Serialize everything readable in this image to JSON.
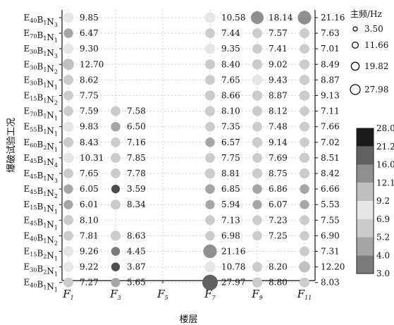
{
  "chart_data": {
    "type": "scatter",
    "xlabel": "楼层",
    "ylabel": "爆破试验工况",
    "x_ticks": [
      {
        "base": "F",
        "sub": "1"
      },
      {
        "base": "F",
        "sub": "3"
      },
      {
        "base": "F",
        "sub": "5"
      },
      {
        "base": "F",
        "sub": "7"
      },
      {
        "base": "F",
        "sub": "9"
      },
      {
        "base": "F",
        "sub": "11"
      }
    ],
    "cases": [
      {
        "parts": [
          [
            "E",
            "40"
          ],
          [
            "B",
            "1"
          ],
          [
            "N",
            "3"
          ]
        ],
        "right": "21.16"
      },
      {
        "parts": [
          [
            "E",
            "70"
          ],
          [
            "B",
            "1"
          ],
          [
            "N",
            "1"
          ]
        ],
        "right": "7.63"
      },
      {
        "parts": [
          [
            "E",
            "30"
          ],
          [
            "B",
            "1"
          ],
          [
            "N",
            "3"
          ]
        ],
        "right": "7.01"
      },
      {
        "parts": [
          [
            "E",
            "30"
          ],
          [
            "B",
            "1"
          ],
          [
            "N",
            "2"
          ]
        ],
        "right": "8.49"
      },
      {
        "parts": [
          [
            "E",
            "30"
          ],
          [
            "B",
            "1"
          ],
          [
            "N",
            "1"
          ]
        ],
        "right": "8.87"
      },
      {
        "parts": [
          [
            "E",
            "15"
          ],
          [
            "B",
            "1"
          ],
          [
            "N",
            "2"
          ]
        ],
        "right": "9.13"
      },
      {
        "parts": [
          [
            "E",
            "70"
          ],
          [
            "B",
            "1"
          ],
          [
            "N",
            "1"
          ]
        ],
        "right": "7.11"
      },
      {
        "parts": [
          [
            "E",
            "55"
          ],
          [
            "B",
            "1"
          ],
          [
            "N",
            "1"
          ]
        ],
        "right": "7.66"
      },
      {
        "parts": [
          [
            "E",
            "60"
          ],
          [
            "B",
            "2"
          ],
          [
            "N",
            "1"
          ]
        ],
        "right": "7.02"
      },
      {
        "parts": [
          [
            "E",
            "45"
          ],
          [
            "B",
            "1"
          ],
          [
            "N",
            "4"
          ]
        ],
        "right": "8.51"
      },
      {
        "parts": [
          [
            "E",
            "45"
          ],
          [
            "B",
            "1"
          ],
          [
            "N",
            "3"
          ]
        ],
        "right": "8.42"
      },
      {
        "parts": [
          [
            "E",
            "45"
          ],
          [
            "B",
            "1"
          ],
          [
            "N",
            "2"
          ]
        ],
        "right": "6.66"
      },
      {
        "parts": [
          [
            "E",
            "15"
          ],
          [
            "B",
            "1"
          ],
          [
            "N",
            "1"
          ]
        ],
        "right": "5.53"
      },
      {
        "parts": [
          [
            "E",
            "45"
          ],
          [
            "B",
            "1"
          ],
          [
            "N",
            "1"
          ]
        ],
        "right": "7.55"
      },
      {
        "parts": [
          [
            "E",
            "40"
          ],
          [
            "B",
            "1"
          ],
          [
            "N",
            "2"
          ]
        ],
        "right": "6.90"
      },
      {
        "parts": [
          [
            "E",
            "15"
          ],
          [
            "B",
            "2"
          ],
          [
            "N",
            "1"
          ]
        ],
        "right": "7.31"
      },
      {
        "parts": [
          [
            "E",
            "30"
          ],
          [
            "B",
            "2"
          ],
          [
            "N",
            "1"
          ]
        ],
        "right": "12.20"
      },
      {
        "parts": [
          [
            "E",
            "40"
          ],
          [
            "B",
            "1"
          ],
          [
            "N",
            "1"
          ]
        ],
        "right": "8.03"
      }
    ],
    "points": [
      {
        "row": 0,
        "floor": 1,
        "value": 9.85,
        "label": "9.85"
      },
      {
        "row": 0,
        "floor": 7,
        "value": 10.58,
        "label": "10.58"
      },
      {
        "row": 0,
        "floor": 9,
        "value": 18.14,
        "label": "18.14"
      },
      {
        "row": 0,
        "floor": 11,
        "value": 21.16,
        "label": ""
      },
      {
        "row": 1,
        "floor": 1,
        "value": 6.47,
        "label": "6.47"
      },
      {
        "row": 1,
        "floor": 7,
        "value": 7.44,
        "label": "7.44"
      },
      {
        "row": 1,
        "floor": 9,
        "value": 7.57,
        "label": "7.57"
      },
      {
        "row": 1,
        "floor": 11,
        "value": 7.63,
        "label": ""
      },
      {
        "row": 2,
        "floor": 1,
        "value": 9.3,
        "label": "9.30"
      },
      {
        "row": 2,
        "floor": 7,
        "value": 9.35,
        "label": "9.35"
      },
      {
        "row": 2,
        "floor": 9,
        "value": 7.41,
        "label": "7.41"
      },
      {
        "row": 2,
        "floor": 11,
        "value": 7.01,
        "label": ""
      },
      {
        "row": 3,
        "floor": 1,
        "value": 12.7,
        "label": "12.70"
      },
      {
        "row": 3,
        "floor": 7,
        "value": 8.4,
        "label": "8.40"
      },
      {
        "row": 3,
        "floor": 9,
        "value": 9.02,
        "label": "9.02"
      },
      {
        "row": 3,
        "floor": 11,
        "value": 8.49,
        "label": ""
      },
      {
        "row": 4,
        "floor": 1,
        "value": 8.62,
        "label": "8.62"
      },
      {
        "row": 4,
        "floor": 7,
        "value": 7.65,
        "label": "7.65"
      },
      {
        "row": 4,
        "floor": 9,
        "value": 9.43,
        "label": "9.43"
      },
      {
        "row": 4,
        "floor": 11,
        "value": 8.87,
        "label": ""
      },
      {
        "row": 5,
        "floor": 1,
        "value": 7.75,
        "label": "7.75"
      },
      {
        "row": 5,
        "floor": 7,
        "value": 8.66,
        "label": "8.66"
      },
      {
        "row": 5,
        "floor": 9,
        "value": 8.87,
        "label": "8.87"
      },
      {
        "row": 5,
        "floor": 11,
        "value": 9.13,
        "label": ""
      },
      {
        "row": 6,
        "floor": 1,
        "value": 7.59,
        "label": "7.59"
      },
      {
        "row": 6,
        "floor": 3,
        "value": 7.58,
        "label": "7.58"
      },
      {
        "row": 6,
        "floor": 7,
        "value": 8.1,
        "label": "8.10"
      },
      {
        "row": 6,
        "floor": 9,
        "value": 8.12,
        "label": "8.12"
      },
      {
        "row": 6,
        "floor": 11,
        "value": 7.11,
        "label": ""
      },
      {
        "row": 7,
        "floor": 1,
        "value": 9.83,
        "label": "9.83"
      },
      {
        "row": 7,
        "floor": 3,
        "value": 6.5,
        "label": "6.50"
      },
      {
        "row": 7,
        "floor": 7,
        "value": 7.35,
        "label": "7.35"
      },
      {
        "row": 7,
        "floor": 9,
        "value": 7.48,
        "label": "7.48"
      },
      {
        "row": 7,
        "floor": 11,
        "value": 7.66,
        "label": ""
      },
      {
        "row": 8,
        "floor": 1,
        "value": 8.43,
        "label": "8.43"
      },
      {
        "row": 8,
        "floor": 3,
        "value": 7.16,
        "label": "7.16"
      },
      {
        "row": 8,
        "floor": 7,
        "value": 6.57,
        "label": "6.57"
      },
      {
        "row": 8,
        "floor": 9,
        "value": 9.14,
        "label": "9.14"
      },
      {
        "row": 8,
        "floor": 11,
        "value": 7.02,
        "label": ""
      },
      {
        "row": 9,
        "floor": 1,
        "value": 10.31,
        "label": "10.31"
      },
      {
        "row": 9,
        "floor": 3,
        "value": 7.85,
        "label": "7.85"
      },
      {
        "row": 9,
        "floor": 7,
        "value": 7.75,
        "label": "7.75"
      },
      {
        "row": 9,
        "floor": 9,
        "value": 7.69,
        "label": "7.69"
      },
      {
        "row": 9,
        "floor": 11,
        "value": 8.51,
        "label": ""
      },
      {
        "row": 10,
        "floor": 1,
        "value": 7.65,
        "label": "7.65"
      },
      {
        "row": 10,
        "floor": 3,
        "value": 7.78,
        "label": "7.78"
      },
      {
        "row": 10,
        "floor": 7,
        "value": 8.81,
        "label": "8.81"
      },
      {
        "row": 10,
        "floor": 9,
        "value": 8.75,
        "label": "8.75"
      },
      {
        "row": 10,
        "floor": 11,
        "value": 8.42,
        "label": ""
      },
      {
        "row": 11,
        "floor": 1,
        "value": 6.05,
        "label": "6.05"
      },
      {
        "row": 11,
        "floor": 3,
        "value": 3.59,
        "label": "3.59"
      },
      {
        "row": 11,
        "floor": 7,
        "value": 6.85,
        "label": "6.85"
      },
      {
        "row": 11,
        "floor": 9,
        "value": 6.86,
        "label": "6.86"
      },
      {
        "row": 11,
        "floor": 11,
        "value": 6.66,
        "label": ""
      },
      {
        "row": 12,
        "floor": 1,
        "value": 6.01,
        "label": "6.01"
      },
      {
        "row": 12,
        "floor": 3,
        "value": 8.34,
        "label": "8.34"
      },
      {
        "row": 12,
        "floor": 7,
        "value": 5.94,
        "label": "5.94"
      },
      {
        "row": 12,
        "floor": 9,
        "value": 6.07,
        "label": "6.07"
      },
      {
        "row": 12,
        "floor": 11,
        "value": 5.53,
        "label": ""
      },
      {
        "row": 13,
        "floor": 1,
        "value": 8.1,
        "label": "8.10"
      },
      {
        "row": 13,
        "floor": 7,
        "value": 7.13,
        "label": "7.13"
      },
      {
        "row": 13,
        "floor": 9,
        "value": 7.23,
        "label": "7.23"
      },
      {
        "row": 13,
        "floor": 11,
        "value": 7.55,
        "label": ""
      },
      {
        "row": 14,
        "floor": 1,
        "value": 7.81,
        "label": "7.81"
      },
      {
        "row": 14,
        "floor": 3,
        "value": 8.63,
        "label": "8.63"
      },
      {
        "row": 14,
        "floor": 7,
        "value": 6.98,
        "label": "6.98"
      },
      {
        "row": 14,
        "floor": 9,
        "value": 7.25,
        "label": "7.25"
      },
      {
        "row": 14,
        "floor": 11,
        "value": 6.9,
        "label": ""
      },
      {
        "row": 15,
        "floor": 1,
        "value": 9.26,
        "label": "9.26"
      },
      {
        "row": 15,
        "floor": 3,
        "value": 4.45,
        "label": "4.45"
      },
      {
        "row": 15,
        "floor": 7,
        "value": 21.16,
        "label": "21.16"
      },
      {
        "row": 15,
        "floor": 11,
        "value": 7.31,
        "label": ""
      },
      {
        "row": 16,
        "floor": 1,
        "value": 9.22,
        "label": "9.22"
      },
      {
        "row": 16,
        "floor": 3,
        "value": 3.87,
        "label": "3.87"
      },
      {
        "row": 16,
        "floor": 7,
        "value": 10.78,
        "label": "10.78"
      },
      {
        "row": 16,
        "floor": 9,
        "value": 8.2,
        "label": "8.20"
      },
      {
        "row": 16,
        "floor": 11,
        "value": 12.2,
        "label": ""
      },
      {
        "row": 17,
        "floor": 1,
        "value": 7.27,
        "label": "7.27"
      },
      {
        "row": 17,
        "floor": 3,
        "value": 5.65,
        "label": "5.65"
      },
      {
        "row": 17,
        "floor": 7,
        "value": 27.97,
        "label": "27.97"
      },
      {
        "row": 17,
        "floor": 9,
        "value": 8.8,
        "label": "8.80"
      },
      {
        "row": 17,
        "floor": 11,
        "value": 8.03,
        "label": ""
      }
    ],
    "size_legend": {
      "title": "主频/Hz",
      "entries": [
        {
          "value": 3.5,
          "label": "3.50"
        },
        {
          "value": 11.66,
          "label": "11.66"
        },
        {
          "value": 19.82,
          "label": "19.82"
        },
        {
          "value": 27.98,
          "label": "27.98"
        }
      ]
    },
    "color_scale": {
      "ticks": [
        "28.0",
        "21.2",
        "16.0",
        "12.1",
        "9.2",
        "6.9",
        "5.2",
        "4.0",
        "3.0"
      ],
      "bands": [
        {
          "min": 3.0,
          "max": 4.0,
          "color": "#4d4d4d"
        },
        {
          "min": 4.0,
          "max": 5.2,
          "color": "#7a7a7a"
        },
        {
          "min": 5.2,
          "max": 6.9,
          "color": "#a6a6a6"
        },
        {
          "min": 6.9,
          "max": 9.2,
          "color": "#cccccc"
        },
        {
          "min": 9.2,
          "max": 12.1,
          "color": "#e6e6e6"
        },
        {
          "min": 12.1,
          "max": 16.0,
          "color": "#c0c0c0"
        },
        {
          "min": 16.0,
          "max": 21.2,
          "color": "#8f8f8f"
        },
        {
          "min": 21.2,
          "max": 28.0,
          "color": "#616161"
        }
      ],
      "top_color": "#1a1a1a"
    },
    "value_range": [
      3.0,
      28.0
    ],
    "grid": true,
    "legend_position": "right"
  }
}
